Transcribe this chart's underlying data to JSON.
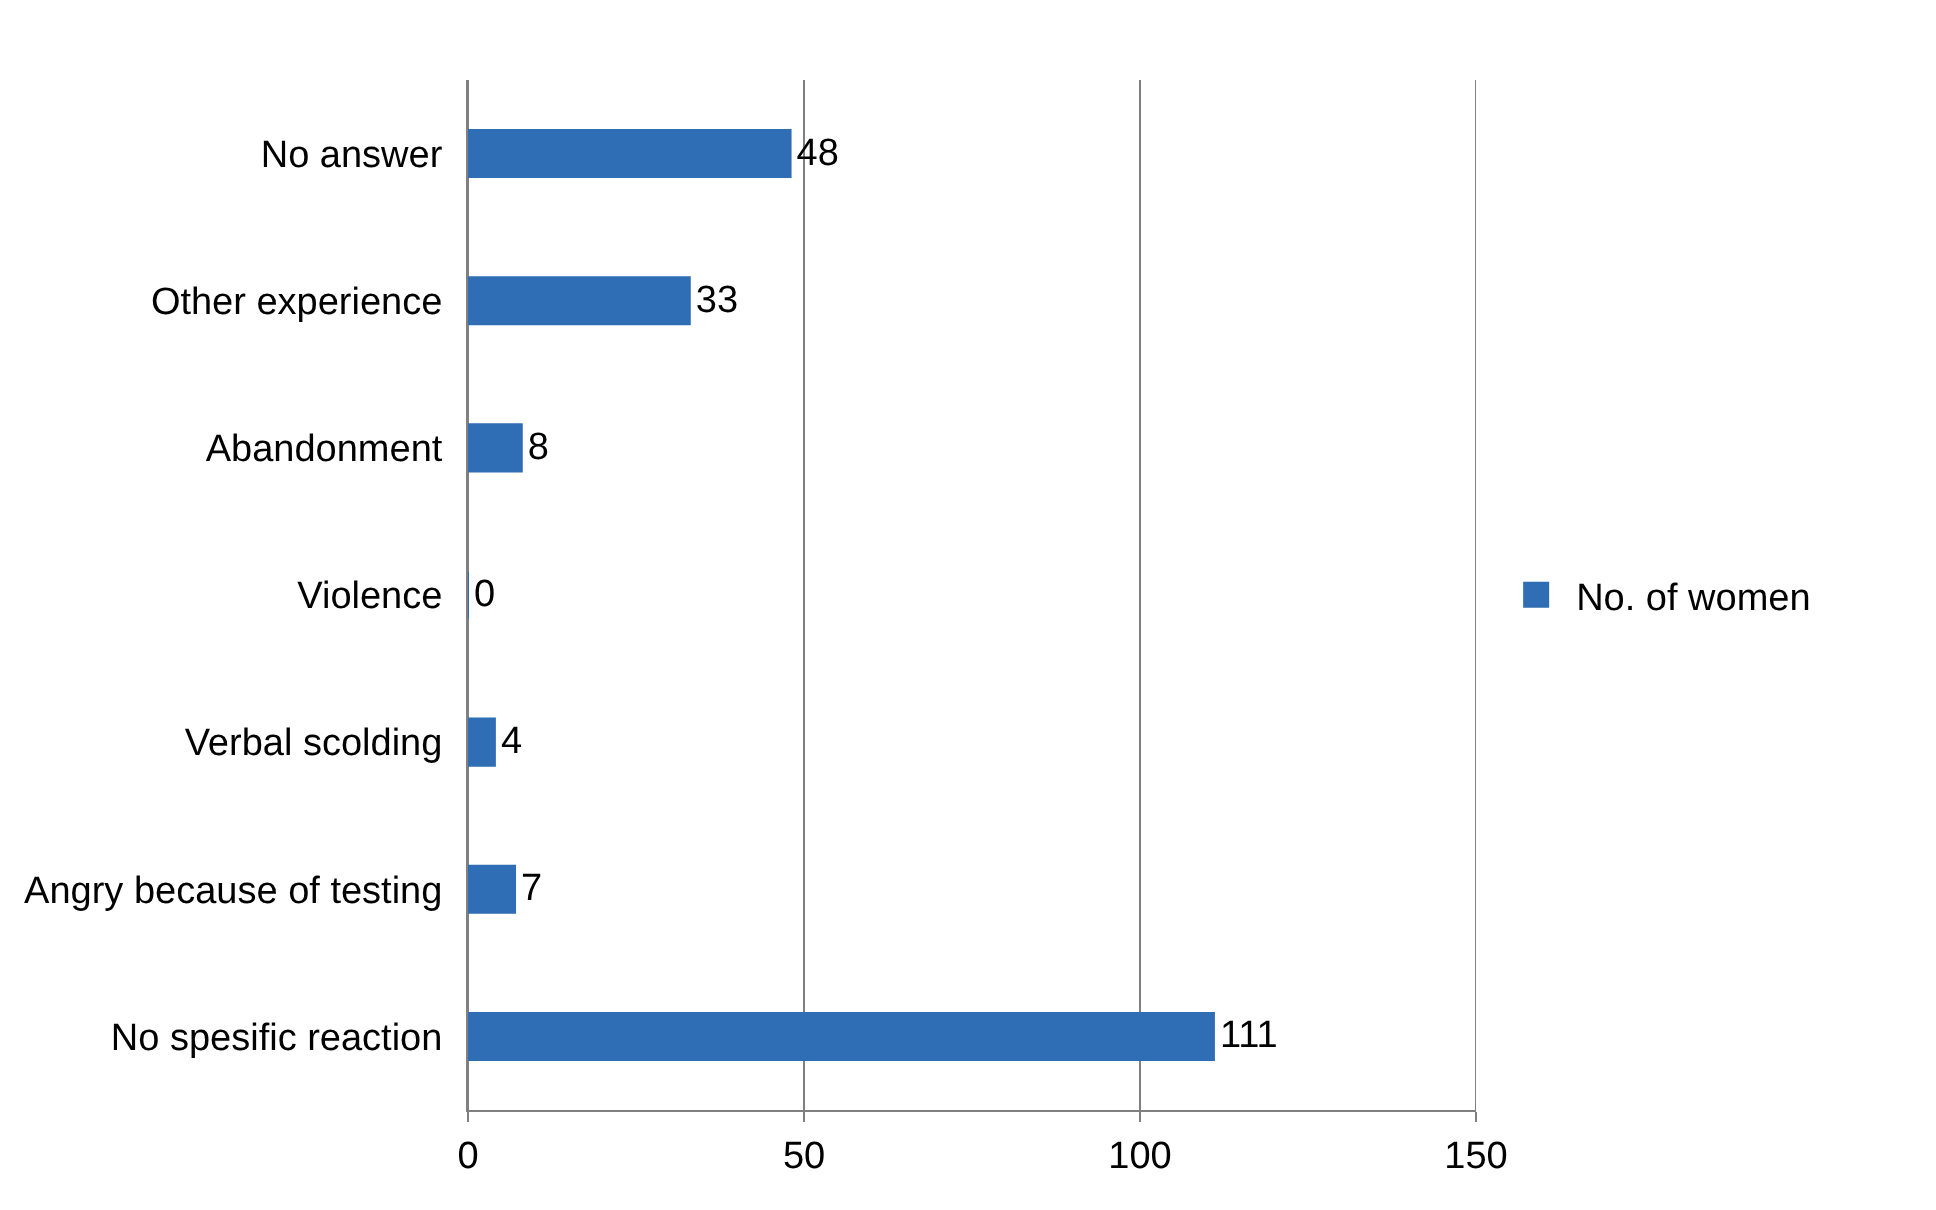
{
  "chart_data": {
    "type": "bar",
    "orientation": "horizontal",
    "categories": [
      "No answer",
      "Other experience",
      "Abandonment",
      "Violence",
      "Verbal scolding",
      "Angry because of testing",
      "No spesific reaction"
    ],
    "series": [
      {
        "name": "No. of women",
        "color": "#2f6db5",
        "values": [
          48,
          33,
          8,
          0,
          4,
          7,
          111
        ]
      }
    ],
    "xlim": [
      0,
      150
    ],
    "xticks": [
      0,
      50,
      100,
      150
    ],
    "grid": "x",
    "legend": "right",
    "data_labels": true
  }
}
